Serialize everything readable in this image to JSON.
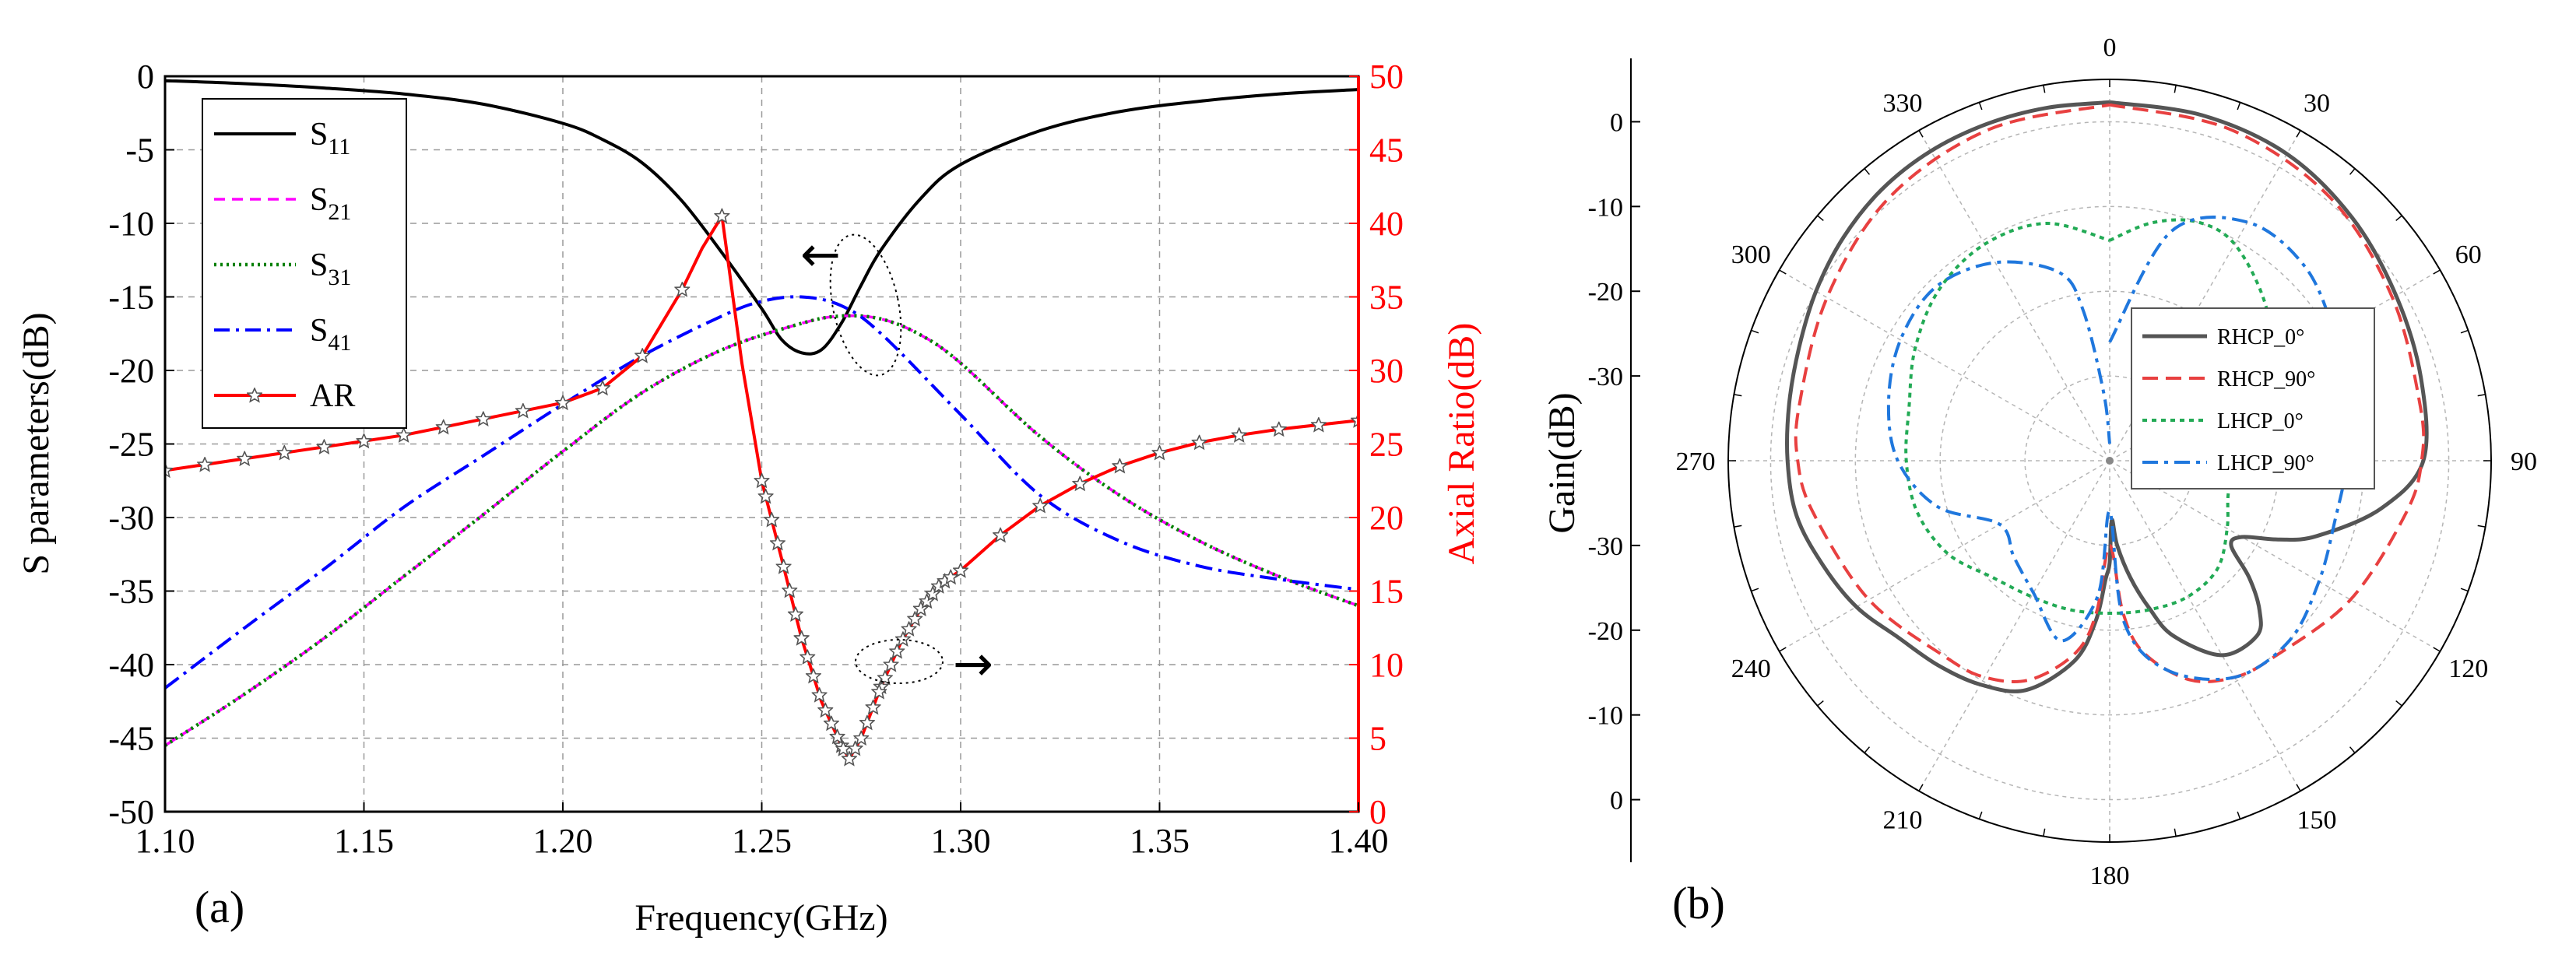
{
  "chart_data": [
    {
      "panel_label": "(a)",
      "type": "line",
      "xlabel": "Frequency(GHz)",
      "ylabel": "S parameters(dB)",
      "ylabel_right": "Axial Ratio(dB)",
      "xlim": [
        1.1,
        1.4
      ],
      "ylim": [
        -50,
        0
      ],
      "ylim_right": [
        0,
        50
      ],
      "x_ticks": [
        "1.10",
        "1.15",
        "1.20",
        "1.25",
        "1.30",
        "1.35",
        "1.40"
      ],
      "y_ticks": [
        "0",
        "-5",
        "-10",
        "-15",
        "-20",
        "-25",
        "-30",
        "-35",
        "-40",
        "-45",
        "-50"
      ],
      "y_ticks_right": [
        "50",
        "45",
        "40",
        "35",
        "30",
        "25",
        "20",
        "15",
        "10",
        "5",
        "0"
      ],
      "grid": true,
      "legend": [
        {
          "base": "S",
          "sub": "11",
          "color": "#000000",
          "style": "solid"
        },
        {
          "base": "S",
          "sub": "21",
          "color": "#ff00ff",
          "style": "dashed"
        },
        {
          "base": "S",
          "sub": "31",
          "color": "#008000",
          "style": "dotted"
        },
        {
          "base": "S",
          "sub": "41",
          "color": "#0000ff",
          "style": "dashdot"
        },
        {
          "base": "AR",
          "sub": "",
          "color": "#ff0000",
          "style": "solid-star"
        }
      ],
      "series": [
        {
          "name": "S11",
          "axis": "left",
          "color": "#000000",
          "x": [
            1.1,
            1.12,
            1.14,
            1.16,
            1.18,
            1.2,
            1.21,
            1.22,
            1.23,
            1.24,
            1.25,
            1.255,
            1.26,
            1.265,
            1.27,
            1.275,
            1.28,
            1.29,
            1.3,
            1.32,
            1.34,
            1.36,
            1.38,
            1.4
          ],
          "values": [
            -0.3,
            -0.5,
            -0.8,
            -1.2,
            -1.9,
            -3.2,
            -4.3,
            -5.9,
            -8.5,
            -12.0,
            -15.8,
            -17.9,
            -18.8,
            -18.6,
            -16.8,
            -14.2,
            -11.8,
            -8.3,
            -6.0,
            -3.7,
            -2.4,
            -1.7,
            -1.2,
            -0.9
          ]
        },
        {
          "name": "S21",
          "axis": "left",
          "color": "#ff00ff",
          "x": [
            1.1,
            1.12,
            1.14,
            1.16,
            1.18,
            1.2,
            1.22,
            1.24,
            1.26,
            1.27,
            1.28,
            1.29,
            1.3,
            1.32,
            1.34,
            1.36,
            1.38,
            1.4
          ],
          "values": [
            -45.5,
            -42.0,
            -38.2,
            -34.0,
            -29.8,
            -25.5,
            -21.5,
            -18.6,
            -16.8,
            -16.3,
            -16.5,
            -17.6,
            -19.5,
            -24.5,
            -28.5,
            -31.6,
            -34.0,
            -36.0
          ]
        },
        {
          "name": "S31",
          "axis": "left",
          "color": "#008000",
          "x": [
            1.1,
            1.12,
            1.14,
            1.16,
            1.18,
            1.2,
            1.22,
            1.24,
            1.26,
            1.27,
            1.28,
            1.29,
            1.3,
            1.32,
            1.34,
            1.36,
            1.38,
            1.4
          ],
          "values": [
            -45.5,
            -42.0,
            -38.2,
            -34.0,
            -29.8,
            -25.5,
            -21.5,
            -18.6,
            -16.8,
            -16.3,
            -16.5,
            -17.6,
            -19.5,
            -24.5,
            -28.5,
            -31.6,
            -34.0,
            -36.0
          ]
        },
        {
          "name": "S41",
          "axis": "left",
          "color": "#0000ff",
          "x": [
            1.1,
            1.12,
            1.14,
            1.16,
            1.18,
            1.2,
            1.22,
            1.24,
            1.25,
            1.26,
            1.27,
            1.28,
            1.3,
            1.32,
            1.34,
            1.36,
            1.38,
            1.4
          ],
          "values": [
            -41.6,
            -37.5,
            -33.5,
            -29.3,
            -25.8,
            -22.3,
            -19.0,
            -16.3,
            -15.3,
            -15.0,
            -15.6,
            -17.5,
            -23.0,
            -28.5,
            -31.6,
            -33.3,
            -34.2,
            -34.9
          ]
        },
        {
          "name": "AR",
          "axis": "right",
          "color": "#ff0000",
          "x": [
            1.1,
            1.12,
            1.14,
            1.16,
            1.18,
            1.2,
            1.21,
            1.22,
            1.23,
            1.235,
            1.24,
            1.245,
            1.25,
            1.255,
            1.26,
            1.265,
            1.27,
            1.272,
            1.275,
            1.28,
            1.285,
            1.29,
            1.295,
            1.3,
            1.31,
            1.32,
            1.33,
            1.34,
            1.35,
            1.36,
            1.37,
            1.38,
            1.39,
            1.4
          ],
          "values": [
            23.2,
            24.0,
            24.8,
            25.6,
            26.7,
            27.8,
            28.8,
            31.0,
            35.5,
            38.3,
            40.5,
            30.5,
            22.5,
            17.2,
            11.8,
            7.5,
            4.5,
            3.6,
            5.0,
            8.5,
            11.5,
            13.8,
            15.5,
            16.4,
            18.8,
            20.8,
            22.3,
            23.5,
            24.4,
            25.1,
            25.6,
            26.0,
            26.3,
            26.6
          ]
        }
      ],
      "annotations": [
        "←",
        "→"
      ]
    },
    {
      "panel_label": "(b)",
      "type": "polar",
      "ylabel": "Gain(dB)",
      "angle_ticks": [
        "0",
        "30",
        "60",
        "90",
        "120",
        "150",
        "180",
        "210",
        "240",
        "270",
        "300",
        "330"
      ],
      "radial_ticks_upper": [
        "0",
        "-10",
        "-20",
        "-30"
      ],
      "radial_ticks_lower": [
        "-30",
        "-20",
        "-10",
        "0"
      ],
      "radial_range": [
        -40,
        5
      ],
      "grid": true,
      "legend": [
        "RHCP_0°",
        "RHCP_90°",
        "LHCP_0°",
        "LHCP_90°"
      ],
      "series": [
        {
          "name": "RHCP_0°",
          "color": "#555555",
          "style": "solid",
          "theta": [
            0,
            15,
            30,
            45,
            60,
            75,
            90,
            100,
            110,
            115,
            120,
            125,
            130,
            135,
            140,
            150,
            160,
            165,
            170,
            175,
            178,
            180,
            182,
            185,
            190,
            200,
            210,
            220,
            230,
            240,
            250,
            260,
            270,
            280,
            290,
            300,
            310,
            320,
            330,
            340,
            350,
            360
          ],
          "gain": [
            2.3,
            2.2,
            1.8,
            0.5,
            -1.0,
            -2.0,
            -3.0,
            -7.5,
            -14.0,
            -18.0,
            -22.0,
            -22.5,
            -18.5,
            -15.0,
            -13.0,
            -13.5,
            -18.0,
            -22.0,
            -26.0,
            -30.0,
            -33.0,
            -28.0,
            -26.0,
            -21.0,
            -16.0,
            -11.2,
            -9.5,
            -8.5,
            -7.5,
            -5.5,
            -4.0,
            -2.5,
            -2.0,
            -1.6,
            -1.0,
            0.0,
            1.0,
            1.8,
            2.2,
            2.3,
            2.3,
            2.3
          ]
        },
        {
          "name": "RHCP_90°",
          "color": "#e84040",
          "style": "dashed",
          "theta": [
            0,
            20,
            40,
            60,
            80,
            90,
            100,
            120,
            140,
            150,
            160,
            170,
            175,
            180,
            185,
            190,
            200,
            210,
            220,
            240,
            260,
            270,
            280,
            300,
            320,
            340,
            360
          ],
          "gain": [
            2.0,
            1.6,
            0.5,
            -1.5,
            -2.8,
            -3.2,
            -4.5,
            -7.2,
            -9.8,
            -10.5,
            -12.5,
            -17.0,
            -22.0,
            -30.0,
            -22.0,
            -17.0,
            -12.5,
            -10.5,
            -9.8,
            -7.2,
            -4.5,
            -3.2,
            -2.8,
            -1.5,
            0.5,
            1.6,
            2.0
          ]
        },
        {
          "name": "LHCP_0°",
          "color": "#22aa55",
          "style": "dotted",
          "theta": [
            0,
            10,
            20,
            30,
            45,
            60,
            75,
            90,
            105,
            120,
            135,
            150,
            165,
            180,
            195,
            210,
            225,
            240,
            255,
            270,
            285,
            300,
            315,
            330,
            345,
            360
          ],
          "gain": [
            -14.0,
            -11.5,
            -10.0,
            -10.5,
            -14.0,
            -18.0,
            -22.0,
            -25.0,
            -25.5,
            -24.0,
            -22.0,
            -21.5,
            -21.8,
            -22.0,
            -21.8,
            -21.5,
            -20.5,
            -18.0,
            -16.5,
            -16.0,
            -15.5,
            -13.5,
            -11.5,
            -10.5,
            -11.0,
            -14.0
          ]
        },
        {
          "name": "LHCP_90°",
          "color": "#1f77dd",
          "style": "dashdot",
          "theta": [
            0,
            15,
            30,
            45,
            60,
            75,
            90,
            105,
            120,
            135,
            150,
            165,
            175,
            180,
            185,
            195,
            210,
            225,
            240,
            255,
            270,
            285,
            300,
            315,
            330,
            345,
            350,
            355,
            360
          ],
          "gain": [
            -26.0,
            -12.0,
            -7.5,
            -7.5,
            -9.5,
            -11.0,
            -12.0,
            -12.5,
            -11.5,
            -10.0,
            -10.5,
            -14.5,
            -21.0,
            -34.0,
            -24.0,
            -18.0,
            -22.0,
            -24.0,
            -25.0,
            -19.0,
            -15.0,
            -13.0,
            -11.5,
            -11.0,
            -13.0,
            -17.0,
            -22.0,
            -32.0,
            -38.0
          ]
        }
      ]
    }
  ]
}
